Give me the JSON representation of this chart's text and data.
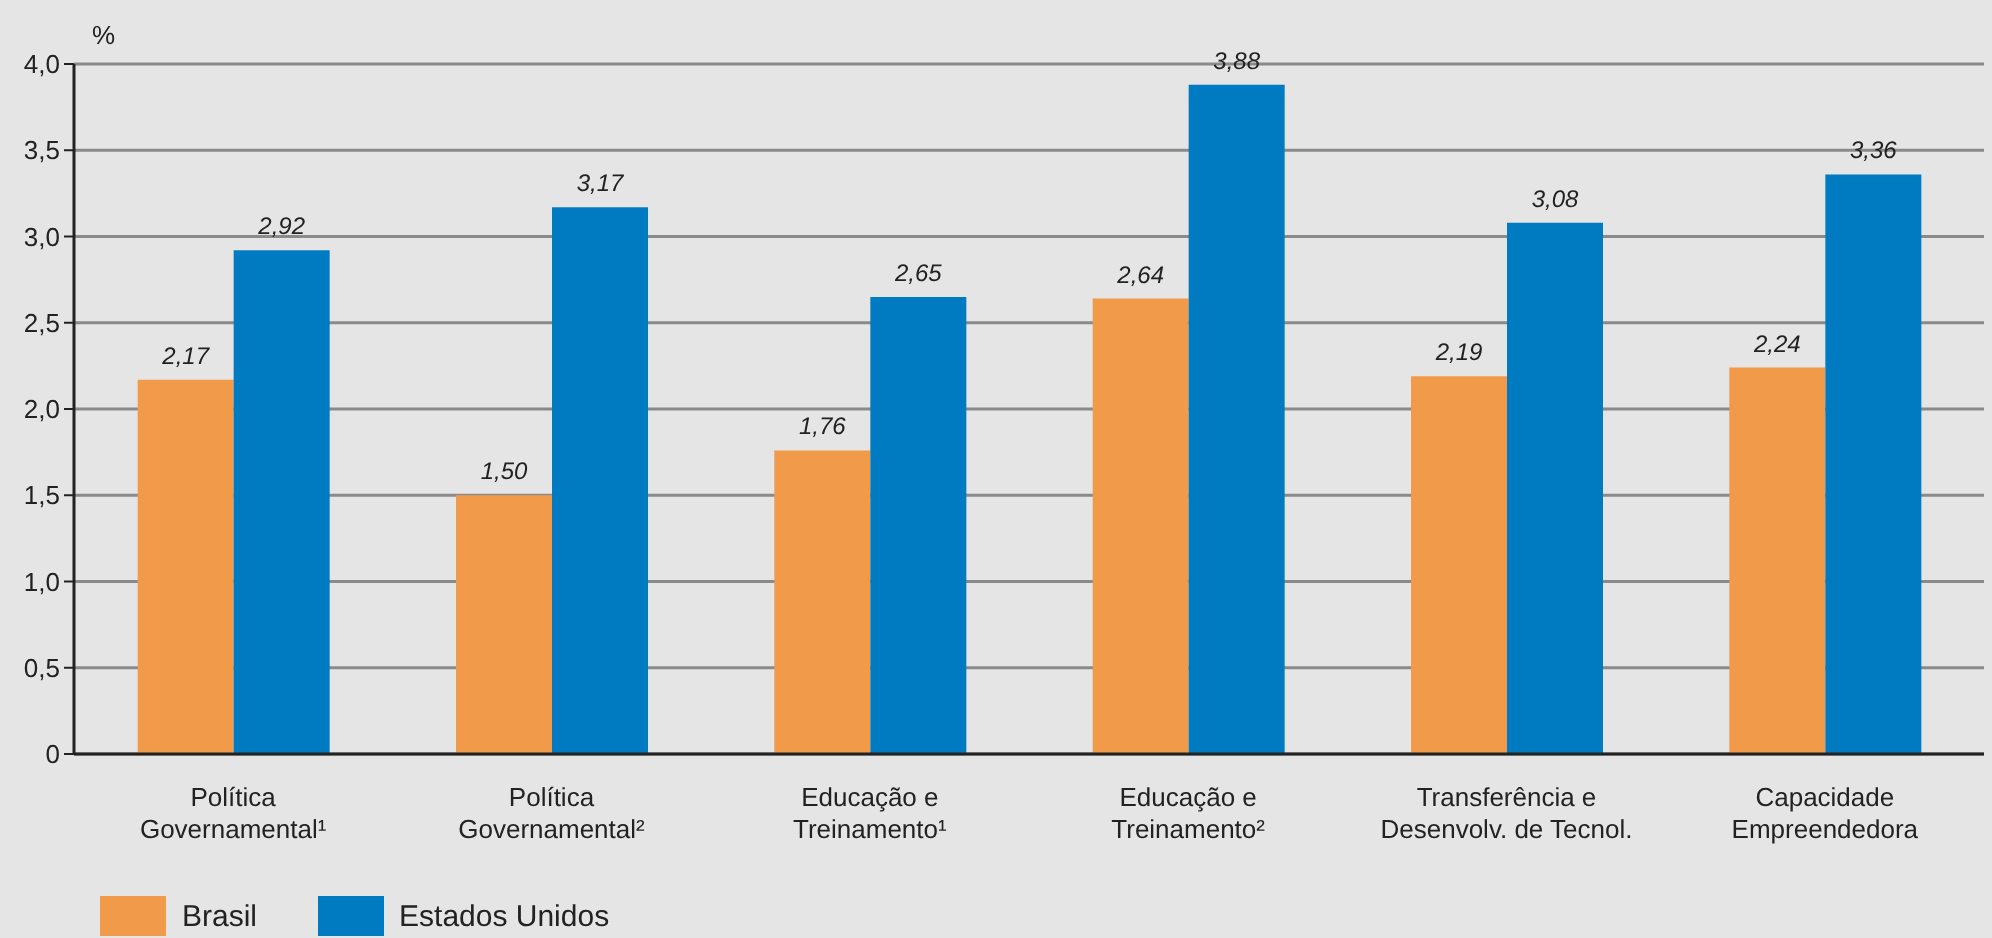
{
  "chart_data": {
    "type": "bar",
    "ylabel": "%",
    "categories": [
      "Política Governamental¹",
      "Política Governamental²",
      "Educação e Treinamento¹",
      "Educação e Treinamento²",
      "Transferência e Desenvolv. de Tecnol.",
      "Capacidade Empreendedora"
    ],
    "series": [
      {
        "name": "Brasil",
        "color": "#f09a4a",
        "values": [
          2.17,
          1.5,
          1.76,
          2.64,
          2.19,
          2.24
        ],
        "value_labels": [
          "2,17",
          "1,50",
          "1,76",
          "2,64",
          "2,19",
          "2,24"
        ]
      },
      {
        "name": "Estados Unidos",
        "color": "#007bc2",
        "values": [
          2.92,
          3.17,
          2.65,
          3.88,
          3.08,
          3.36
        ],
        "value_labels": [
          "2,92",
          "3,17",
          "2,65",
          "3,88",
          "3,08",
          "3,36"
        ]
      }
    ],
    "ylim": [
      0,
      4
    ],
    "yticks": [
      {
        "value": 0,
        "label": "0"
      },
      {
        "value": 0.5,
        "label": "0,5"
      },
      {
        "value": 1,
        "label": "1,0"
      },
      {
        "value": 1.5,
        "label": "1,5"
      },
      {
        "value": 2,
        "label": "2,0"
      },
      {
        "value": 2.5,
        "label": "2,5"
      },
      {
        "value": 3,
        "label": "3,0"
      },
      {
        "value": 3.5,
        "label": "3,5"
      },
      {
        "value": 4,
        "label": "4,0"
      }
    ],
    "grid": "y",
    "legend": "bottom left"
  }
}
